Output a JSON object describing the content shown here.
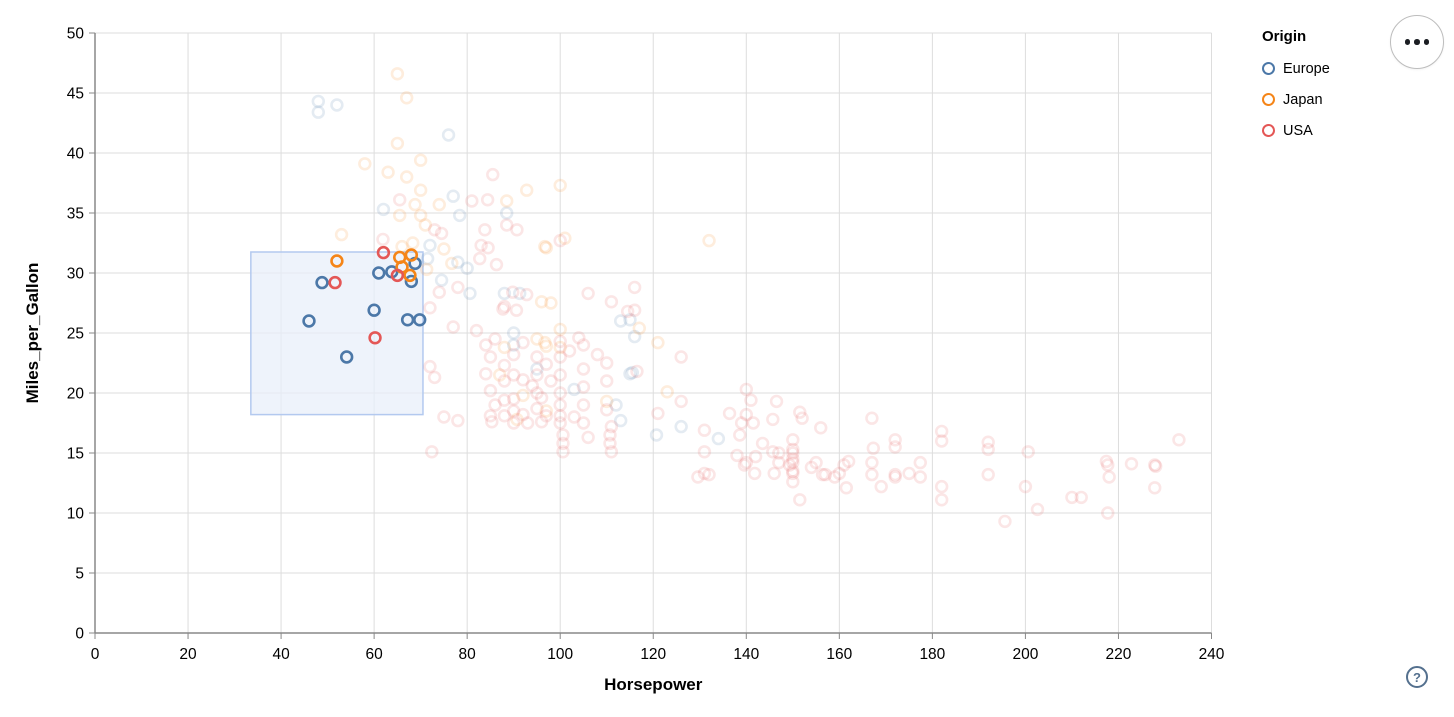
{
  "chart_data": {
    "type": "scatter",
    "title": "",
    "xlabel": "Horsepower",
    "ylabel": "Miles_per_Gallon",
    "xlim": [
      0,
      240
    ],
    "ylim": [
      0,
      50
    ],
    "x_ticks": [
      0,
      20,
      40,
      60,
      80,
      100,
      120,
      140,
      160,
      180,
      200,
      220,
      240
    ],
    "y_ticks": [
      0,
      5,
      10,
      15,
      20,
      25,
      30,
      35,
      40,
      45,
      50
    ],
    "grid": true,
    "legend": {
      "title": "Origin",
      "position": "top-right",
      "entries": [
        {
          "label": "Europe",
          "color": "#4c78a8"
        },
        {
          "label": "Japan",
          "color": "#f58518"
        },
        {
          "label": "USA",
          "color": "#e45756"
        }
      ]
    },
    "brush_selection": {
      "x_range": [
        33.5,
        70.5
      ],
      "y_range": [
        18.2,
        31.75
      ],
      "fill": "#e8effa",
      "border": "#b3c9ef"
    },
    "point_style": {
      "radius": 5.4,
      "stroke_width": 2.6,
      "faded_opacity": 0.15,
      "selected_opacity": 1
    },
    "series": [
      {
        "name": "Europe",
        "color": "#4c78a8",
        "selected": [
          [
            68.8,
            30.8
          ],
          [
            63.8,
            30.1
          ],
          [
            61,
            30
          ],
          [
            68,
            29.3
          ],
          [
            48.8,
            29.2
          ],
          [
            60,
            26.9
          ],
          [
            46,
            26
          ],
          [
            67.2,
            26.1
          ],
          [
            69.8,
            26.1
          ],
          [
            54.1,
            23
          ]
        ],
        "faded": [
          [
            48,
            44.3
          ],
          [
            52,
            44
          ],
          [
            48,
            43.4
          ],
          [
            76,
            41.5
          ],
          [
            62,
            35.3
          ],
          [
            77,
            36.4
          ],
          [
            78.4,
            34.8
          ],
          [
            88.5,
            35
          ],
          [
            72,
            32.3
          ],
          [
            71.5,
            31.2
          ],
          [
            78,
            30.9
          ],
          [
            80,
            30.4
          ],
          [
            74.5,
            29.4
          ],
          [
            80.6,
            28.3
          ],
          [
            88,
            28.3
          ],
          [
            91.3,
            28.3
          ],
          [
            113,
            26
          ],
          [
            115,
            26.1
          ],
          [
            116,
            24.7
          ],
          [
            115.5,
            21.7
          ],
          [
            103,
            20.3
          ],
          [
            115,
            21.6
          ],
          [
            112,
            19
          ],
          [
            90,
            25
          ],
          [
            90,
            24
          ],
          [
            95,
            22
          ],
          [
            126,
            17.2
          ],
          [
            120.7,
            16.5
          ],
          [
            134,
            16.2
          ],
          [
            113,
            17.7
          ]
        ]
      },
      {
        "name": "Japan",
        "color": "#f58518",
        "selected": [
          [
            52,
            31
          ],
          [
            65.5,
            31.3
          ],
          [
            68,
            31.5
          ],
          [
            66,
            30.5
          ],
          [
            67.7,
            29.8
          ]
        ],
        "faded": [
          [
            65,
            46.6
          ],
          [
            67,
            44.6
          ],
          [
            65,
            40.8
          ],
          [
            70,
            39.4
          ],
          [
            58,
            39.1
          ],
          [
            63,
            38.4
          ],
          [
            67,
            38
          ],
          [
            70,
            36.9
          ],
          [
            68.8,
            35.7
          ],
          [
            65.5,
            34.8
          ],
          [
            70,
            34.8
          ],
          [
            74,
            35.7
          ],
          [
            71,
            34
          ],
          [
            92.8,
            36.9
          ],
          [
            88.5,
            36
          ],
          [
            100,
            37.3
          ],
          [
            96.7,
            32.2
          ],
          [
            97,
            32.1
          ],
          [
            101,
            32.9
          ],
          [
            132,
            32.7
          ],
          [
            75,
            32
          ],
          [
            76.7,
            30.8
          ],
          [
            71.3,
            30.3
          ],
          [
            96,
            27.6
          ],
          [
            98,
            27.5
          ],
          [
            117,
            25.4
          ],
          [
            121,
            24.2
          ],
          [
            123,
            20.1
          ],
          [
            53,
            33.2
          ],
          [
            68.3,
            32.5
          ],
          [
            66,
            32.2
          ],
          [
            88,
            23.8
          ],
          [
            95,
            24.5
          ],
          [
            97,
            23.9
          ],
          [
            87,
            21.5
          ],
          [
            92,
            19.8
          ],
          [
            90.7,
            17.8
          ],
          [
            97,
            18.5
          ],
          [
            100,
            25.3
          ],
          [
            96.7,
            24.2
          ],
          [
            100,
            23.8
          ],
          [
            110,
            19.3
          ]
        ]
      },
      {
        "name": "USA",
        "color": "#e45756",
        "selected": [
          [
            62,
            31.7
          ],
          [
            65,
            29.8
          ],
          [
            51.6,
            29.2
          ],
          [
            60.2,
            24.6
          ]
        ],
        "faded": [
          [
            85.5,
            38.2
          ],
          [
            84.4,
            36.1
          ],
          [
            81,
            36
          ],
          [
            65.5,
            36.1
          ],
          [
            83.8,
            33.6
          ],
          [
            88.5,
            34
          ],
          [
            90.7,
            33.6
          ],
          [
            84.5,
            32.1
          ],
          [
            73,
            33.6
          ],
          [
            74.5,
            33.3
          ],
          [
            61.9,
            32.8
          ],
          [
            100,
            32.7
          ],
          [
            83,
            32.3
          ],
          [
            82.7,
            31.2
          ],
          [
            86.3,
            30.7
          ],
          [
            74,
            28.4
          ],
          [
            78,
            28.8
          ],
          [
            89.8,
            28.4
          ],
          [
            92.8,
            28.2
          ],
          [
            88,
            27.2
          ],
          [
            87.7,
            27
          ],
          [
            90.6,
            26.9
          ],
          [
            72,
            27.1
          ],
          [
            106,
            28.3
          ],
          [
            111,
            27.6
          ],
          [
            114.5,
            26.8
          ],
          [
            116,
            28.8
          ],
          [
            116,
            26.9
          ],
          [
            77,
            25.5
          ],
          [
            82,
            25.2
          ],
          [
            104,
            24.6
          ],
          [
            84,
            24
          ],
          [
            85,
            23
          ],
          [
            86,
            24.5
          ],
          [
            88,
            22.3
          ],
          [
            88,
            21
          ],
          [
            90,
            23.2
          ],
          [
            90,
            21.5
          ],
          [
            90,
            19.5
          ],
          [
            92,
            24.2
          ],
          [
            92,
            21.1
          ],
          [
            94,
            20.6
          ],
          [
            95,
            23
          ],
          [
            95,
            21.5
          ],
          [
            95,
            20
          ],
          [
            96,
            19.6
          ],
          [
            97,
            22.4
          ],
          [
            98,
            21
          ],
          [
            100,
            24.3
          ],
          [
            100,
            23
          ],
          [
            100,
            21.5
          ],
          [
            100,
            20
          ],
          [
            100,
            19
          ],
          [
            102,
            23.5
          ],
          [
            105,
            24
          ],
          [
            105,
            22
          ],
          [
            105,
            20.5
          ],
          [
            105,
            19
          ],
          [
            108,
            23.2
          ],
          [
            110,
            22.5
          ],
          [
            110,
            21
          ],
          [
            110,
            18.6
          ],
          [
            84,
            21.6
          ],
          [
            85,
            20.2
          ],
          [
            86,
            19
          ],
          [
            88,
            19.4
          ],
          [
            85,
            18.1
          ],
          [
            88,
            18.1
          ],
          [
            90,
            18.5
          ],
          [
            92,
            18.2
          ],
          [
            95,
            18.7
          ],
          [
            97,
            18.1
          ],
          [
            100,
            18.1
          ],
          [
            103,
            18
          ],
          [
            116.5,
            21.8
          ],
          [
            126,
            23
          ],
          [
            72,
            22.2
          ],
          [
            73,
            21.3
          ],
          [
            75,
            18
          ],
          [
            78,
            17.7
          ],
          [
            85.3,
            17.6
          ],
          [
            90,
            17.5
          ],
          [
            93,
            17.5
          ],
          [
            96,
            17.6
          ],
          [
            100,
            17.5
          ],
          [
            105,
            17.5
          ],
          [
            72.4,
            15.1
          ],
          [
            100.6,
            16.5
          ],
          [
            100.6,
            15.8
          ],
          [
            106,
            16.3
          ],
          [
            111,
            17.2
          ],
          [
            110.7,
            16.5
          ],
          [
            110.7,
            15.8
          ],
          [
            111,
            15.1
          ],
          [
            100.6,
            15.1
          ],
          [
            126,
            19.3
          ],
          [
            121,
            18.3
          ],
          [
            129.6,
            13
          ],
          [
            131,
            16.9
          ],
          [
            131,
            15.1
          ],
          [
            131,
            13.3
          ],
          [
            132,
            13.2
          ],
          [
            136.4,
            18.3
          ],
          [
            138,
            14.8
          ],
          [
            139,
            17.5
          ],
          [
            138.6,
            16.5
          ],
          [
            140,
            20.3
          ],
          [
            141,
            19.4
          ],
          [
            140,
            18.2
          ],
          [
            141.5,
            17.5
          ],
          [
            142,
            14.7
          ],
          [
            140,
            14.2
          ],
          [
            139.6,
            14
          ],
          [
            141.8,
            13.3
          ],
          [
            143.5,
            15.8
          ],
          [
            145.7,
            17.8
          ],
          [
            145.7,
            15.1
          ],
          [
            146,
            13.3
          ],
          [
            146.5,
            19.3
          ],
          [
            147,
            15
          ],
          [
            147,
            14.2
          ],
          [
            149.3,
            14
          ],
          [
            150,
            16.1
          ],
          [
            150,
            15.3
          ],
          [
            150,
            15
          ],
          [
            150,
            14.5
          ],
          [
            150,
            14.2
          ],
          [
            150,
            13.5
          ],
          [
            150,
            13.3
          ],
          [
            150,
            12.6
          ],
          [
            151.5,
            18.4
          ],
          [
            152,
            17.9
          ],
          [
            151.5,
            11.1
          ],
          [
            154,
            13.8
          ],
          [
            155,
            14.2
          ],
          [
            156,
            17.1
          ],
          [
            156.4,
            13.2
          ],
          [
            157,
            13.2
          ],
          [
            159,
            13
          ],
          [
            160,
            13.3
          ],
          [
            161,
            14
          ],
          [
            162,
            14.3
          ],
          [
            161.5,
            12.1
          ],
          [
            167,
            17.9
          ],
          [
            167.3,
            15.4
          ],
          [
            172,
            16.1
          ],
          [
            172,
            15.5
          ],
          [
            167,
            14.2
          ],
          [
            167,
            13.2
          ],
          [
            172,
            13.2
          ],
          [
            172,
            13
          ],
          [
            169,
            12.2
          ],
          [
            175,
            13.3
          ],
          [
            177.4,
            14.2
          ],
          [
            177.4,
            13
          ],
          [
            182,
            16.8
          ],
          [
            182,
            16
          ],
          [
            182,
            12.2
          ],
          [
            182,
            11.1
          ],
          [
            192,
            15.9
          ],
          [
            192,
            15.3
          ],
          [
            192,
            13.2
          ],
          [
            200.6,
            15.1
          ],
          [
            200,
            12.2
          ],
          [
            202.6,
            10.3
          ],
          [
            195.6,
            9.3
          ],
          [
            210,
            11.3
          ],
          [
            212,
            11.3
          ],
          [
            217.4,
            14.3
          ],
          [
            217.7,
            14
          ],
          [
            218,
            13
          ],
          [
            222.8,
            14.1
          ],
          [
            227.8,
            14
          ],
          [
            228,
            13.9
          ],
          [
            227.8,
            12.1
          ],
          [
            217.7,
            10
          ],
          [
            233,
            16.1
          ]
        ]
      }
    ]
  },
  "controls": {
    "actions_button": {
      "icon": "ellipsis-icon"
    },
    "help_link": {
      "label": "?"
    }
  }
}
